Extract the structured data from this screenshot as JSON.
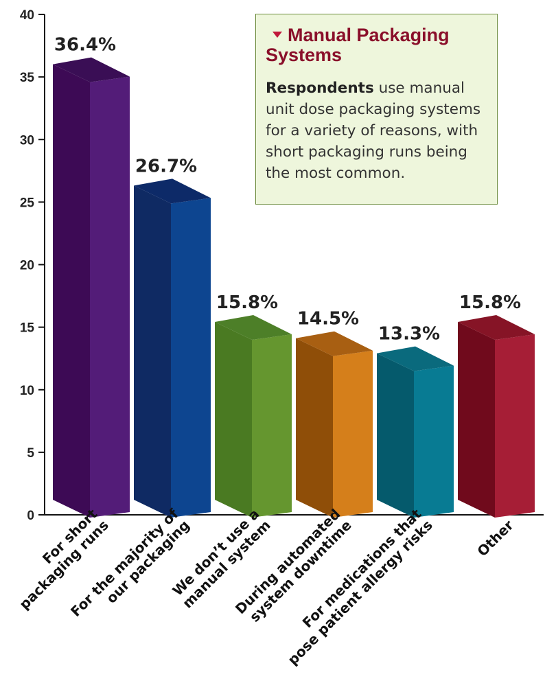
{
  "chart_data": {
    "type": "bar",
    "categories": [
      [
        "For short",
        "packaging runs"
      ],
      [
        "For the majority of",
        "our packaging"
      ],
      [
        "We don’t use a",
        "manual system"
      ],
      [
        "During automated",
        "system downtime"
      ],
      [
        "For medications that",
        "pose patient allergy risks"
      ],
      [
        "Other"
      ]
    ],
    "values": [
      36.4,
      26.7,
      15.8,
      14.5,
      13.3,
      15.8
    ],
    "value_labels": [
      "36.4%",
      "26.7%",
      "15.8%",
      "14.5%",
      "13.3%",
      "15.8%"
    ],
    "ylim": [
      0,
      40
    ],
    "yticks": [
      0,
      5,
      10,
      15,
      20,
      25,
      30,
      35,
      40
    ],
    "grid": false,
    "style": "3d-bar",
    "colors": [
      {
        "front": "#3d0a55",
        "side": "#531c78",
        "top": "#3a0e55"
      },
      {
        "front": "#0f2a63",
        "side": "#0d4590",
        "top": "#0d2a68"
      },
      {
        "front": "#4a7a22",
        "side": "#65962f",
        "top": "#4d7f28"
      },
      {
        "front": "#8f4e08",
        "side": "#d57f1b",
        "top": "#a85f12"
      },
      {
        "front": "#055a6c",
        "side": "#087b93",
        "top": "#0a6a7d"
      },
      {
        "front": "#700a1c",
        "side": "#a61e36",
        "top": "#861426"
      }
    ]
  },
  "callout": {
    "title": "Manual Packaging Systems",
    "body_bold": "Respondents",
    "body_rest": " use manual unit dose packaging systems for a variety of reasons, with short packaging runs being the most common."
  }
}
